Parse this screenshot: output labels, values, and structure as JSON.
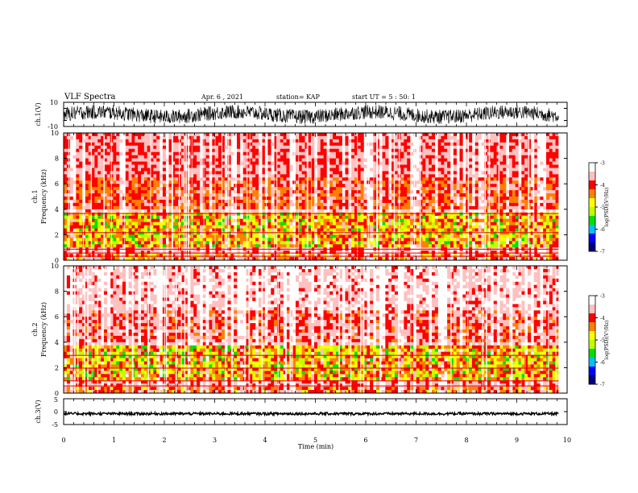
{
  "header": {
    "title": "VLF Spectra",
    "date": "Apr. 6  , 2021",
    "station": "station= KAP",
    "start": "start  UT =  5 : 50: 1"
  },
  "chart_data": [
    {
      "id": "ch1-waveform",
      "type": "line",
      "ylabel": "ch.1(V)",
      "ylim": [
        -10,
        10
      ],
      "yticks": [
        "10",
        "-10"
      ],
      "xlim": [
        0,
        10
      ]
    },
    {
      "id": "ch1-spectrogram",
      "type": "heatmap",
      "ylabel": "ch.1\nFrequency (kHz)",
      "ylim": [
        0,
        10
      ],
      "yticks": [
        "0",
        "2",
        "4",
        "6",
        "8",
        "10"
      ],
      "xlim": [
        0,
        10
      ],
      "colorbar": {
        "label": "log(PSD)(V²/Hz)",
        "range": [
          -7,
          -3
        ],
        "ticks": [
          "-3",
          "-4",
          "-5",
          "-6",
          "-7"
        ]
      }
    },
    {
      "id": "ch2-spectrogram",
      "type": "heatmap",
      "ylabel": "ch.2\nFrequency (kHz)",
      "ylim": [
        0,
        10
      ],
      "yticks": [
        "0",
        "2",
        "4",
        "6",
        "8",
        "10"
      ],
      "xlim": [
        0,
        10
      ],
      "colorbar": {
        "label": "log(PSD)(V²/Hz)",
        "range": [
          -7,
          -3
        ],
        "ticks": [
          "-3",
          "-4",
          "-5",
          "-6",
          "-7"
        ]
      }
    },
    {
      "id": "ch3-waveform",
      "type": "line",
      "ylabel": "ch.3(V)",
      "ylim": [
        -5,
        5
      ],
      "yticks": [
        "5",
        "0",
        "-5"
      ],
      "xlim": [
        0,
        10
      ],
      "xlabel": "Time (min)",
      "xticks": [
        "0",
        "1",
        "2",
        "3",
        "4",
        "5",
        "6",
        "7",
        "8",
        "9",
        "10"
      ]
    }
  ],
  "colors": {
    "scale": [
      "#000080",
      "#0000ff",
      "#00c0ff",
      "#00e000",
      "#c0ff00",
      "#ffff00",
      "#ff8000",
      "#ff0000",
      "#ffc0c0",
      "#ffffff"
    ],
    "line": "#000000"
  }
}
